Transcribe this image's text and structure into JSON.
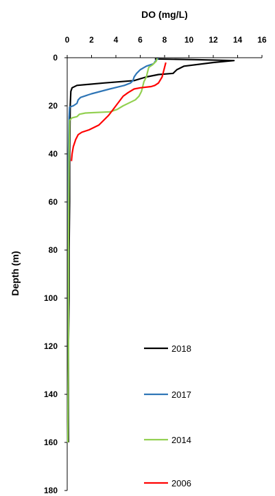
{
  "chart_data": {
    "type": "line",
    "title": "DO (mg/L)",
    "xlabel": "DO (mg/L)",
    "ylabel": "Depth (m)",
    "xlim": [
      0,
      16
    ],
    "ylim": [
      0,
      180
    ],
    "y_inverted": true,
    "x_axis_position": "top",
    "x_ticks": [
      "0",
      "2",
      "4",
      "6",
      "8",
      "10",
      "12",
      "14",
      "16"
    ],
    "y_ticks": [
      "0",
      "20",
      "40",
      "60",
      "80",
      "100",
      "120",
      "140",
      "160",
      "180"
    ],
    "legend_placement": "bottom-right",
    "series": [
      {
        "name": "2018",
        "color": "#000000",
        "points": [
          [
            7.2,
            0.5
          ],
          [
            10.5,
            0.8
          ],
          [
            13.7,
            1.2
          ],
          [
            12,
            2
          ],
          [
            9.6,
            3.5
          ],
          [
            9,
            5
          ],
          [
            8.7,
            6.5
          ],
          [
            7.5,
            7
          ],
          [
            6.5,
            8
          ],
          [
            5.5,
            9.5
          ],
          [
            3,
            10.5
          ],
          [
            0.8,
            11.5
          ],
          [
            0.4,
            12.5
          ],
          [
            0.3,
            14
          ],
          [
            0.25,
            20
          ],
          [
            0.2,
            40
          ],
          [
            0.2,
            60
          ],
          [
            0.15,
            80
          ],
          [
            0.15,
            100
          ],
          [
            0.1,
            120
          ],
          [
            0.1,
            140
          ],
          [
            0.1,
            160
          ]
        ]
      },
      {
        "name": "2017",
        "color": "#2e75b6",
        "points": [
          [
            7.5,
            0.3
          ],
          [
            7.3,
            1
          ],
          [
            7.1,
            2.5
          ],
          [
            6.5,
            3.5
          ],
          [
            6,
            5
          ],
          [
            5.7,
            6.5
          ],
          [
            5.5,
            8
          ],
          [
            5.4,
            9.5
          ],
          [
            5.2,
            10.5
          ],
          [
            4.7,
            11.5
          ],
          [
            3.5,
            13
          ],
          [
            2,
            15
          ],
          [
            1.1,
            16.5
          ],
          [
            0.9,
            17.5
          ],
          [
            0.8,
            19
          ],
          [
            0.5,
            20
          ],
          [
            0.2,
            20.5
          ],
          [
            0.15,
            25
          ],
          [
            0.1,
            40
          ],
          [
            0.1,
            80
          ],
          [
            0.1,
            120
          ],
          [
            0.05,
            160
          ]
        ]
      },
      {
        "name": "2014",
        "color": "#92d050",
        "points": [
          [
            7.4,
            0.3
          ],
          [
            7.3,
            1.5
          ],
          [
            7,
            3
          ],
          [
            6.7,
            4
          ],
          [
            6.6,
            6
          ],
          [
            6.5,
            8
          ],
          [
            6.3,
            10
          ],
          [
            6.2,
            12
          ],
          [
            6.1,
            14
          ],
          [
            5.9,
            16
          ],
          [
            5.6,
            17.5
          ],
          [
            5.2,
            18.5
          ],
          [
            4.6,
            20
          ],
          [
            4.1,
            21.5
          ],
          [
            3.5,
            22.5
          ],
          [
            1.5,
            23
          ],
          [
            1,
            23.5
          ],
          [
            0.8,
            24.5
          ],
          [
            0.4,
            25
          ],
          [
            0.2,
            26
          ],
          [
            0.15,
            40
          ],
          [
            0.1,
            80
          ],
          [
            0.1,
            120
          ],
          [
            0.05,
            160
          ]
        ]
      },
      {
        "name": "2006",
        "color": "#ff0000",
        "points": [
          [
            8.1,
            2
          ],
          [
            8,
            4
          ],
          [
            7.9,
            6
          ],
          [
            7.8,
            8
          ],
          [
            7.5,
            10.5
          ],
          [
            7.2,
            11.5
          ],
          [
            6.9,
            12
          ],
          [
            6,
            12.5
          ],
          [
            5.5,
            13
          ],
          [
            5,
            14.5
          ],
          [
            4.6,
            16
          ],
          [
            4.3,
            18
          ],
          [
            4,
            20
          ],
          [
            3.7,
            22
          ],
          [
            3.4,
            24
          ],
          [
            3,
            26
          ],
          [
            2.6,
            28
          ],
          [
            1.8,
            30
          ],
          [
            1.2,
            31
          ],
          [
            0.9,
            32
          ],
          [
            0.7,
            34
          ],
          [
            0.5,
            37
          ],
          [
            0.4,
            40
          ],
          [
            0.35,
            43
          ]
        ]
      }
    ]
  }
}
